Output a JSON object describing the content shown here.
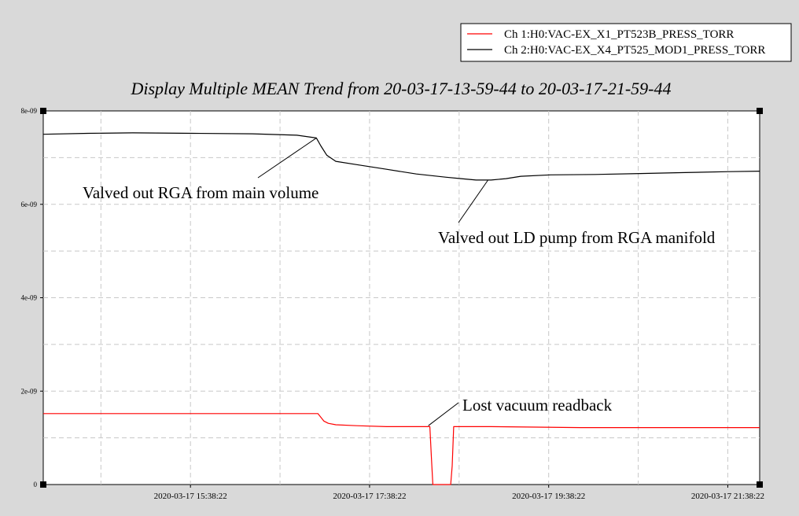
{
  "chart_data": {
    "type": "line",
    "title": "Display Multiple MEAN Trend from 20-03-17-13-59-44 to 20-03-17-21-59-44",
    "xlabel": "",
    "ylabel": "",
    "x_unit": "minutes from 2020-03-17 13:59:44",
    "xlim": [
      0,
      480
    ],
    "ylim": [
      0,
      8e-09
    ],
    "grid": true,
    "legend_position": "top-right",
    "y_ticks": [
      {
        "value": 0,
        "label": "0"
      },
      {
        "value": 2e-09,
        "label": "2e-09"
      },
      {
        "value": 4e-09,
        "label": "4e-09"
      },
      {
        "value": 6e-09,
        "label": "6e-09"
      },
      {
        "value": 8e-09,
        "label": "8e-09"
      }
    ],
    "x_ticks": [
      {
        "value": 98.63,
        "label": "2020-03-17 15:38:22"
      },
      {
        "value": 218.63,
        "label": "2020-03-17 17:38:22"
      },
      {
        "value": 338.63,
        "label": "2020-03-17 19:38:22"
      },
      {
        "value": 458.63,
        "label": "2020-03-17 21:38:22"
      }
    ],
    "series": [
      {
        "name": "Ch 1:H0:VAC-EX_X1_PT523B_PRESS_TORR",
        "color": "#ff0000",
        "points": [
          [
            0,
            1.52e-09
          ],
          [
            40,
            1.52e-09
          ],
          [
            80,
            1.52e-09
          ],
          [
            120,
            1.52e-09
          ],
          [
            160,
            1.52e-09
          ],
          [
            184,
            1.52e-09
          ],
          [
            186,
            1.44e-09
          ],
          [
            188,
            1.36e-09
          ],
          [
            191,
            1.31e-09
          ],
          [
            196,
            1.28e-09
          ],
          [
            210,
            1.26e-09
          ],
          [
            230,
            1.24e-09
          ],
          [
            259,
            1.24e-09
          ],
          [
            260,
            6e-10
          ],
          [
            261,
            0
          ],
          [
            273,
            0
          ],
          [
            274,
            4e-10
          ],
          [
            275,
            1.24e-09
          ],
          [
            300,
            1.24e-09
          ],
          [
            330,
            1.23e-09
          ],
          [
            360,
            1.22e-09
          ],
          [
            400,
            1.22e-09
          ],
          [
            440,
            1.22e-09
          ],
          [
            480,
            1.22e-09
          ]
        ]
      },
      {
        "name": "Ch 2:H0:VAC-EX_X4_PT525_MOD1_PRESS_TORR",
        "color": "#000000",
        "points": [
          [
            0,
            7.5e-09
          ],
          [
            30,
            7.52e-09
          ],
          [
            60,
            7.53e-09
          ],
          [
            100,
            7.52e-09
          ],
          [
            140,
            7.51e-09
          ],
          [
            170,
            7.48e-09
          ],
          [
            183,
            7.42e-09
          ],
          [
            186,
            7.25e-09
          ],
          [
            190,
            7.05e-09
          ],
          [
            196,
            6.92e-09
          ],
          [
            210,
            6.85e-09
          ],
          [
            230,
            6.75e-09
          ],
          [
            250,
            6.65e-09
          ],
          [
            270,
            6.58e-09
          ],
          [
            280,
            6.55e-09
          ],
          [
            290,
            6.52e-09
          ],
          [
            300,
            6.52e-09
          ],
          [
            310,
            6.55e-09
          ],
          [
            320,
            6.6e-09
          ],
          [
            340,
            6.63e-09
          ],
          [
            370,
            6.64e-09
          ],
          [
            400,
            6.66e-09
          ],
          [
            430,
            6.68e-09
          ],
          [
            460,
            6.7e-09
          ],
          [
            480,
            6.71e-09
          ]
        ]
      }
    ],
    "annotations": [
      {
        "text": "Valved out RGA from main volume",
        "point": [
          183,
          7.42e-09
        ]
      },
      {
        "text": "Valved out LD pump from RGA manifold",
        "point": [
          298,
          6.52e-09
        ]
      },
      {
        "text": "Lost vacuum readback",
        "point": [
          258,
          1.26e-09
        ]
      }
    ]
  }
}
